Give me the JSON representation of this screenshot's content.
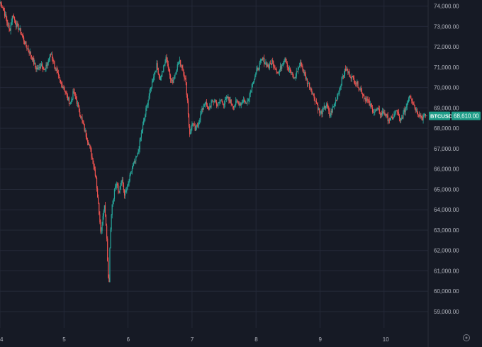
{
  "chart_data": {
    "type": "candlestick",
    "symbol": "BTCUSD",
    "last_price": 68610.0,
    "last_price_label": "68,610.00",
    "ylim": [
      58200,
      74300
    ],
    "y_ticks": [
      {
        "value": 74000,
        "label": "74,000.00"
      },
      {
        "value": 73000,
        "label": "73,000.00"
      },
      {
        "value": 72000,
        "label": "72,000.00"
      },
      {
        "value": 71000,
        "label": "71,000.00"
      },
      {
        "value": 70000,
        "label": "70,000.00"
      },
      {
        "value": 69000,
        "label": "69,000.00"
      },
      {
        "value": 68000,
        "label": "68,000.00"
      },
      {
        "value": 67000,
        "label": "67,000.00"
      },
      {
        "value": 66000,
        "label": "66,000.00"
      },
      {
        "value": 65000,
        "label": "65,000.00"
      },
      {
        "value": 64000,
        "label": "64,000.00"
      },
      {
        "value": 63000,
        "label": "63,000.00"
      },
      {
        "value": 62000,
        "label": "62,000.00"
      },
      {
        "value": 61000,
        "label": "61,000.00"
      },
      {
        "value": 60000,
        "label": "60,000.00"
      },
      {
        "value": 59000,
        "label": "59,000.00"
      }
    ],
    "x_ticks": [
      "4",
      "5",
      "6",
      "7",
      "8",
      "9",
      "10"
    ],
    "x_range": [
      4,
      10.67
    ],
    "close_path": [
      [
        4.0,
        74200
      ],
      [
        4.05,
        73900
      ],
      [
        4.1,
        73300
      ],
      [
        4.15,
        72800
      ],
      [
        4.2,
        73600
      ],
      [
        4.25,
        73100
      ],
      [
        4.3,
        72900
      ],
      [
        4.35,
        72500
      ],
      [
        4.4,
        72100
      ],
      [
        4.45,
        71800
      ],
      [
        4.5,
        71500
      ],
      [
        4.55,
        71000
      ],
      [
        4.6,
        70900
      ],
      [
        4.65,
        71200
      ],
      [
        4.7,
        70800
      ],
      [
        4.75,
        71300
      ],
      [
        4.8,
        71700
      ],
      [
        4.85,
        71100
      ],
      [
        4.9,
        70600
      ],
      [
        4.95,
        70200
      ],
      [
        5.0,
        70000
      ],
      [
        5.05,
        69500
      ],
      [
        5.1,
        69200
      ],
      [
        5.15,
        69800
      ],
      [
        5.2,
        69300
      ],
      [
        5.25,
        68700
      ],
      [
        5.3,
        68200
      ],
      [
        5.35,
        67600
      ],
      [
        5.4,
        67100
      ],
      [
        5.45,
        66400
      ],
      [
        5.5,
        65600
      ],
      [
        5.52,
        64800
      ],
      [
        5.55,
        63800
      ],
      [
        5.58,
        62800
      ],
      [
        5.6,
        63500
      ],
      [
        5.63,
        64300
      ],
      [
        5.66,
        63200
      ],
      [
        5.68,
        61500
      ],
      [
        5.7,
        60000
      ],
      [
        5.72,
        62500
      ],
      [
        5.75,
        64300
      ],
      [
        5.78,
        64700
      ],
      [
        5.8,
        65200
      ],
      [
        5.83,
        65400
      ],
      [
        5.86,
        64800
      ],
      [
        5.9,
        65500
      ],
      [
        5.95,
        64700
      ],
      [
        6.0,
        65200
      ],
      [
        6.05,
        65900
      ],
      [
        6.1,
        66300
      ],
      [
        6.15,
        66700
      ],
      [
        6.2,
        67600
      ],
      [
        6.25,
        68400
      ],
      [
        6.3,
        69200
      ],
      [
        6.35,
        69900
      ],
      [
        6.4,
        70600
      ],
      [
        6.45,
        71100
      ],
      [
        6.5,
        70400
      ],
      [
        6.55,
        70900
      ],
      [
        6.6,
        71500
      ],
      [
        6.65,
        70600
      ],
      [
        6.7,
        70300
      ],
      [
        6.75,
        70900
      ],
      [
        6.8,
        71300
      ],
      [
        6.85,
        71000
      ],
      [
        6.9,
        70300
      ],
      [
        6.93,
        69300
      ],
      [
        6.95,
        68200
      ],
      [
        6.97,
        67600
      ],
      [
        7.0,
        68300
      ],
      [
        7.05,
        67900
      ],
      [
        7.1,
        68300
      ],
      [
        7.15,
        68800
      ],
      [
        7.2,
        69300
      ],
      [
        7.25,
        68900
      ],
      [
        7.3,
        69200
      ],
      [
        7.35,
        69400
      ],
      [
        7.4,
        69100
      ],
      [
        7.45,
        69400
      ],
      [
        7.5,
        69200
      ],
      [
        7.55,
        69500
      ],
      [
        7.6,
        69300
      ],
      [
        7.65,
        69100
      ],
      [
        7.7,
        69300
      ],
      [
        7.75,
        69200
      ],
      [
        7.8,
        69400
      ],
      [
        7.85,
        69200
      ],
      [
        7.9,
        69700
      ],
      [
        7.95,
        70300
      ],
      [
        8.0,
        70700
      ],
      [
        8.05,
        71100
      ],
      [
        8.1,
        71400
      ],
      [
        8.15,
        71200
      ],
      [
        8.2,
        71000
      ],
      [
        8.25,
        71300
      ],
      [
        8.3,
        71000
      ],
      [
        8.35,
        70700
      ],
      [
        8.4,
        71100
      ],
      [
        8.45,
        71500
      ],
      [
        8.5,
        71000
      ],
      [
        8.55,
        70700
      ],
      [
        8.6,
        70400
      ],
      [
        8.65,
        70900
      ],
      [
        8.7,
        71200
      ],
      [
        8.75,
        70700
      ],
      [
        8.8,
        70300
      ],
      [
        8.85,
        70000
      ],
      [
        8.9,
        69600
      ],
      [
        8.95,
        69200
      ],
      [
        9.0,
        68700
      ],
      [
        9.05,
        68900
      ],
      [
        9.1,
        69200
      ],
      [
        9.15,
        68600
      ],
      [
        9.2,
        69000
      ],
      [
        9.25,
        69400
      ],
      [
        9.3,
        69900
      ],
      [
        9.35,
        70500
      ],
      [
        9.4,
        70900
      ],
      [
        9.45,
        70700
      ],
      [
        9.5,
        70500
      ],
      [
        9.55,
        70300
      ],
      [
        9.6,
        70100
      ],
      [
        9.65,
        69800
      ],
      [
        9.7,
        69500
      ],
      [
        9.75,
        69300
      ],
      [
        9.8,
        69000
      ],
      [
        9.85,
        68800
      ],
      [
        9.9,
        68900
      ],
      [
        9.95,
        68700
      ],
      [
        10.0,
        68800
      ],
      [
        10.05,
        68500
      ],
      [
        10.1,
        68400
      ],
      [
        10.15,
        68600
      ],
      [
        10.2,
        68900
      ],
      [
        10.25,
        68300
      ],
      [
        10.3,
        68700
      ],
      [
        10.35,
        69100
      ],
      [
        10.4,
        69700
      ],
      [
        10.45,
        69300
      ],
      [
        10.5,
        68900
      ],
      [
        10.55,
        68700
      ],
      [
        10.6,
        68500
      ],
      [
        10.65,
        68610
      ]
    ],
    "colors": {
      "up": "#26a69a",
      "down": "#ef5350",
      "background": "#161a25",
      "grid": "#242938",
      "tick_text": "#b2b5be",
      "price_tag": "#1f9e89"
    },
    "grid": true
  }
}
